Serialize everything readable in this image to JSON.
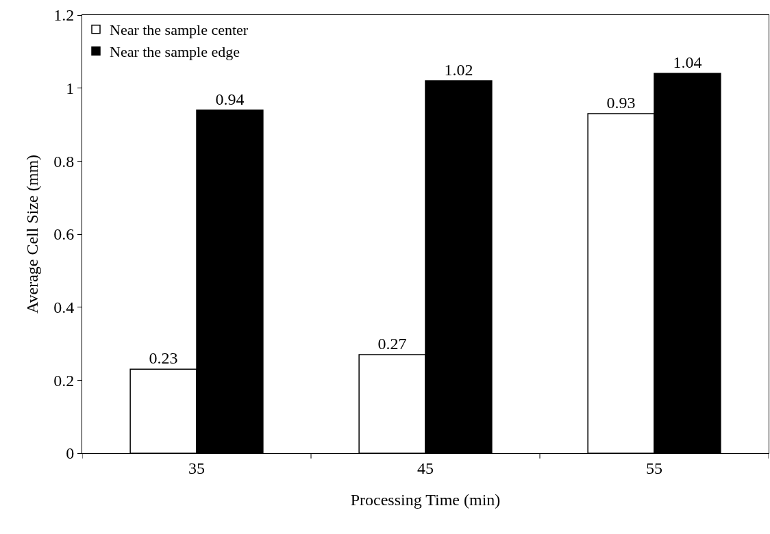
{
  "chart_data": {
    "type": "bar",
    "xlabel": "Processing Time (min)",
    "ylabel": "Average Cell Size (mm)",
    "categories": [
      "35",
      "45",
      "55"
    ],
    "series": [
      {
        "name": "Near the sample center",
        "color": "#ffffff",
        "values": [
          0.23,
          0.27,
          0.93
        ]
      },
      {
        "name": "Near the sample edge",
        "color": "#000000",
        "values": [
          0.94,
          1.02,
          1.04
        ]
      }
    ],
    "ylim": [
      0,
      1.2
    ],
    "yticks": [
      0,
      0.2,
      0.4,
      0.6,
      0.8,
      1,
      1.2
    ],
    "data_labels": true,
    "legend": "top left"
  }
}
